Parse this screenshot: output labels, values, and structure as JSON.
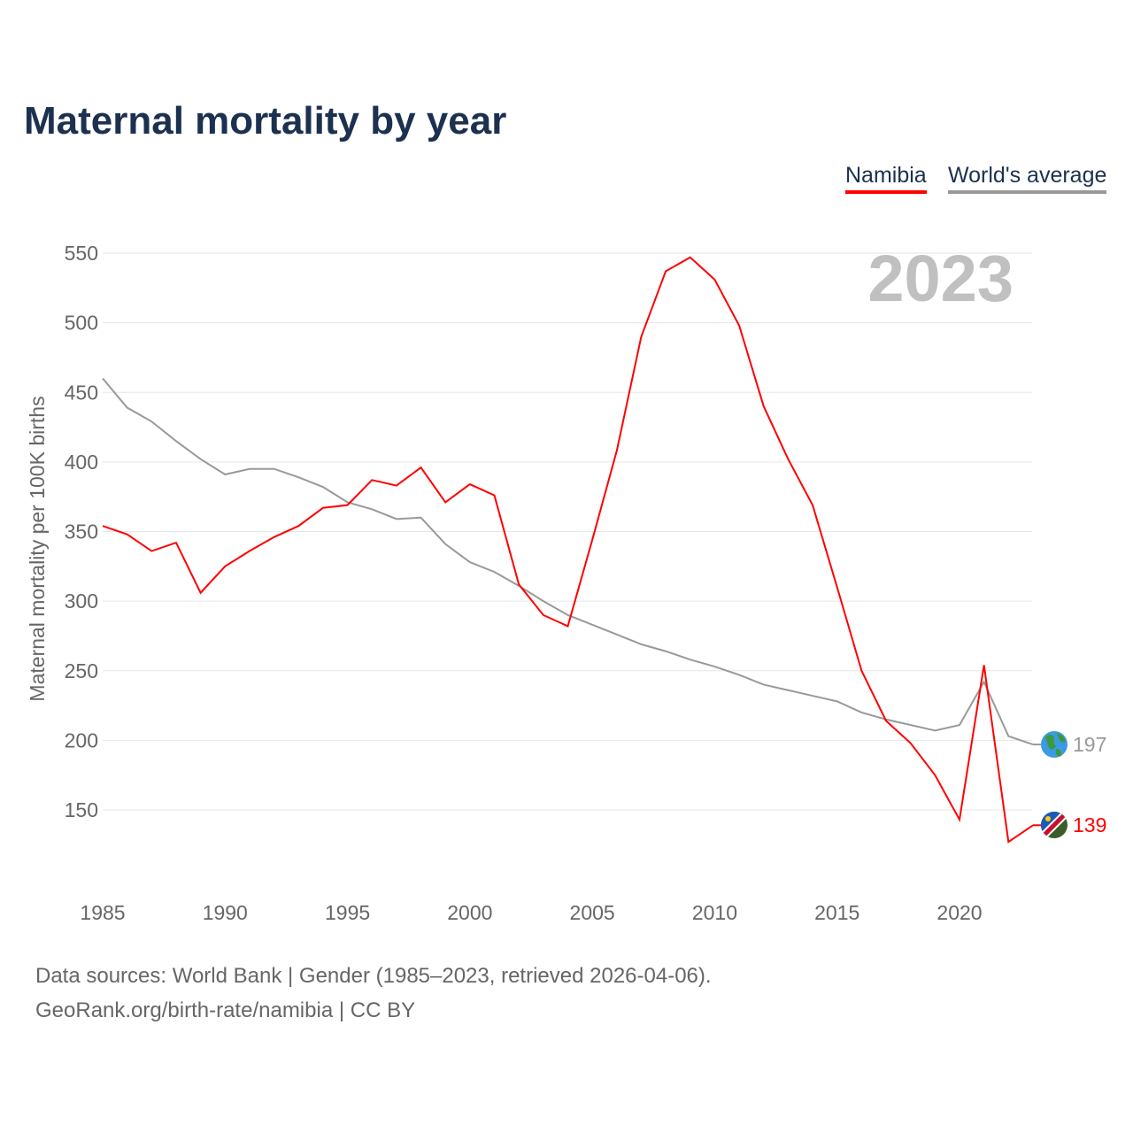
{
  "chart_data": {
    "type": "line",
    "title": "Maternal mortality by year",
    "ylabel": "Maternal mortality per 100K births",
    "xlabel": "",
    "year_label": "2023",
    "ylim": [
      100,
      560
    ],
    "xlim": [
      1985,
      2023
    ],
    "yticks": [
      150,
      200,
      250,
      300,
      350,
      400,
      450,
      500,
      550
    ],
    "xticks": [
      1985,
      1990,
      1995,
      2000,
      2005,
      2010,
      2015,
      2020
    ],
    "grid": true,
    "legend_placement": "top-right",
    "x": [
      1985,
      1986,
      1987,
      1988,
      1989,
      1990,
      1991,
      1992,
      1993,
      1994,
      1995,
      1996,
      1997,
      1998,
      1999,
      2000,
      2001,
      2002,
      2003,
      2004,
      2005,
      2006,
      2007,
      2008,
      2009,
      2010,
      2011,
      2012,
      2013,
      2014,
      2015,
      2016,
      2017,
      2018,
      2019,
      2020,
      2021,
      2022,
      2023
    ],
    "series": [
      {
        "name": "Namibia",
        "color": "#ff0000",
        "end_label": "139",
        "values": [
          354,
          348,
          336,
          342,
          306,
          325,
          336,
          346,
          354,
          367,
          369,
          387,
          383,
          396,
          371,
          384,
          376,
          312,
          290,
          282,
          344,
          408,
          490,
          537,
          547,
          531,
          498,
          440,
          402,
          369,
          310,
          250,
          214,
          198,
          175,
          143,
          254,
          127,
          139
        ]
      },
      {
        "name": "World's average",
        "color": "#999999",
        "end_label": "197",
        "values": [
          460,
          439,
          429,
          415,
          402,
          391,
          395,
          395,
          389,
          382,
          371,
          366,
          359,
          360,
          341,
          328,
          321,
          311,
          300,
          290,
          283,
          276,
          269,
          264,
          258,
          253,
          247,
          240,
          236,
          232,
          228,
          220,
          215,
          211,
          207,
          211,
          242,
          203,
          197
        ]
      }
    ]
  },
  "footer": {
    "source": "Data sources: World Bank | Gender (1985–2023, retrieved 2026-04-06).",
    "credit": "GeoRank.org/birth-rate/namibia | CC BY"
  }
}
